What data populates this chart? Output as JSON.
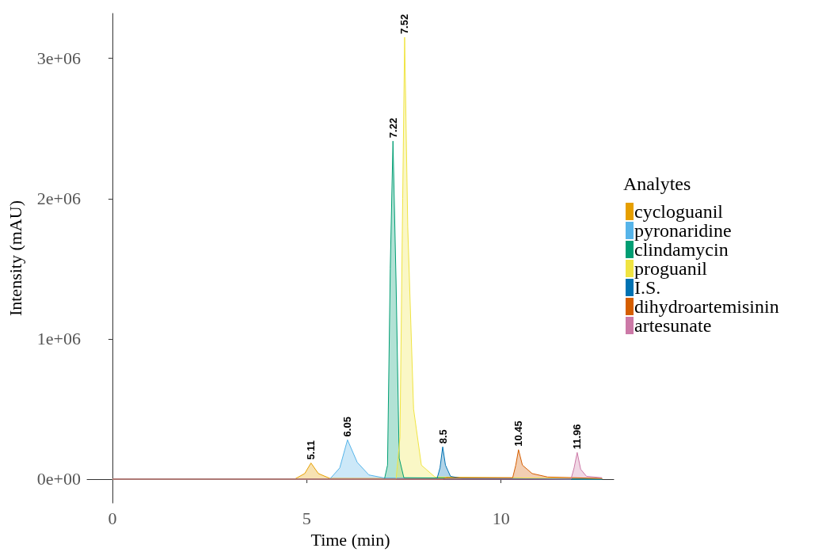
{
  "chart_data": {
    "type": "area",
    "xlabel": "Time (min)",
    "ylabel": "Intensity (mAU)",
    "legend_title": "Analytes",
    "legend": "right",
    "grid": false,
    "xlim": [
      -0.65,
      12.9
    ],
    "xticks": [
      0,
      5,
      10
    ],
    "ylim": [
      -170000,
      3320000
    ],
    "yticks": [
      {
        "value": 0,
        "label": "0e+00"
      },
      {
        "value": 1000000,
        "label": "1e+06"
      },
      {
        "value": 2000000,
        "label": "2e+06"
      },
      {
        "value": 3000000,
        "label": "3e+06"
      }
    ],
    "series": [
      {
        "name": "cycloguanil",
        "color": "#e69f00",
        "x": [
          0,
          4.7,
          4.95,
          5.11,
          5.3,
          5.6,
          12.6
        ],
        "values": [
          0,
          2000,
          40000,
          115000,
          40000,
          5000,
          3000
        ]
      },
      {
        "name": "pyronaridine",
        "color": "#56b4e9",
        "x": [
          0,
          5.6,
          5.85,
          6.05,
          6.3,
          6.6,
          7.0,
          12.6
        ],
        "values": [
          0,
          2000,
          80000,
          280000,
          120000,
          30000,
          8000,
          0
        ]
      },
      {
        "name": "clindamycin",
        "color": "#009e73",
        "x": [
          0,
          7.0,
          7.08,
          7.15,
          7.22,
          7.3,
          7.38,
          7.5,
          12.6
        ],
        "values": [
          0,
          0,
          100000,
          1500000,
          2410000,
          1400000,
          150000,
          10000,
          0
        ]
      },
      {
        "name": "proguanil",
        "color": "#f0e442",
        "x": [
          0,
          7.3,
          7.4,
          7.47,
          7.52,
          7.6,
          7.75,
          7.95,
          8.3,
          12.6
        ],
        "values": [
          0,
          0,
          300000,
          2000000,
          3150000,
          1800000,
          500000,
          100000,
          15000,
          3000
        ]
      },
      {
        "name": "I.S.",
        "color": "#0072b2",
        "x": [
          0,
          8.35,
          8.43,
          8.5,
          8.57,
          8.7,
          9.0,
          12.6
        ],
        "values": [
          0,
          0,
          80000,
          230000,
          100000,
          20000,
          5000,
          0
        ]
      },
      {
        "name": "dihydroartemisinin",
        "color": "#d55e00",
        "x": [
          0,
          8.5,
          8.6,
          10.3,
          10.38,
          10.45,
          10.55,
          10.8,
          11.2,
          12.6
        ],
        "values": [
          0,
          0,
          10000,
          10000,
          100000,
          210000,
          100000,
          40000,
          15000,
          5000
        ]
      },
      {
        "name": "artesunate",
        "color": "#cc79a7",
        "x": [
          0,
          11.8,
          11.88,
          11.96,
          12.05,
          12.2,
          12.6
        ],
        "values": [
          0,
          0,
          80000,
          190000,
          70000,
          20000,
          10000
        ]
      }
    ],
    "annotations": [
      {
        "text": "5.11",
        "x": 5.11,
        "y": 115000
      },
      {
        "text": "6.05",
        "x": 6.05,
        "y": 280000
      },
      {
        "text": "7.22",
        "x": 7.22,
        "y": 2410000
      },
      {
        "text": "7.52",
        "x": 7.52,
        "y": 3150000
      },
      {
        "text": "8.5",
        "x": 8.5,
        "y": 230000
      },
      {
        "text": "10.45",
        "x": 10.45,
        "y": 210000
      },
      {
        "text": "11.96",
        "x": 11.96,
        "y": 190000
      }
    ]
  }
}
